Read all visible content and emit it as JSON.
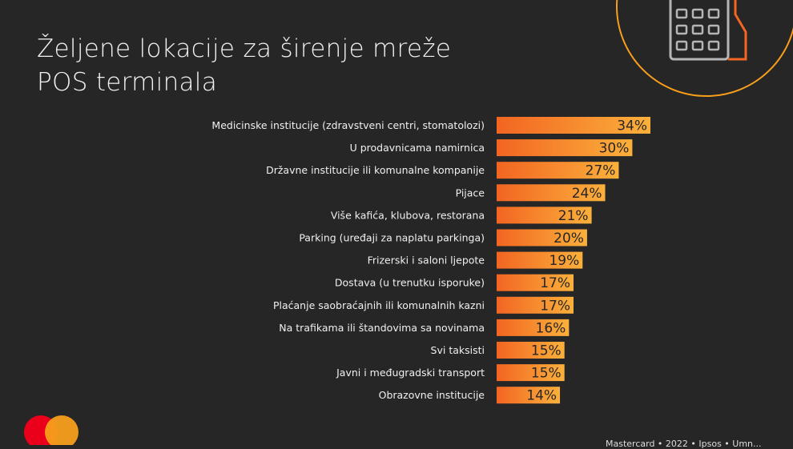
{
  "colors": {
    "background": "#262626",
    "bar_start": "#f26522",
    "bar_end": "#fbb03b",
    "accent_circle": "#f79e1b",
    "logo_red": "#eb001b",
    "logo_orange": "#f79e1b"
  },
  "icons": [
    "pos-terminal-icon",
    "brand-logo-icon"
  ],
  "footer": {
    "text": "Mastercard • 2022 • Ipsos • Umn..."
  },
  "chart_data": {
    "type": "bar",
    "orientation": "horizontal",
    "title": "Željene lokacije za širenje mreže POS terminala",
    "title_lines": [
      "Željene lokacije za širenje mreže",
      "POS terminala"
    ],
    "categories": [
      "Medicinske institucije (zdravstveni centri, stomatolozi)",
      "U prodavnicama namirnica",
      "Državne institucije ili komunalne kompanije",
      "Pijace",
      "Više kafića, klubova, restorana",
      "Parking (uređaji za naplatu parkinga)",
      "Frizerski i saloni ljepote",
      "Dostava (u trenutku isporuke)",
      "Plaćanje saobraćajnih ili komunalnih kazni",
      "Na  trafikama ili štandovima sa novinama",
      "Svi taksisti",
      "Javni i međugradski transport",
      "Obrazovne institucije"
    ],
    "values": [
      34,
      30,
      27,
      24,
      21,
      20,
      19,
      17,
      17,
      16,
      15,
      15,
      14
    ],
    "value_labels": [
      "34%",
      "30%",
      "27%",
      "24%",
      "21%",
      "20%",
      "19%",
      "17%",
      "17%",
      "16%",
      "15%",
      "15%",
      "14%"
    ],
    "unit": "%",
    "xlim": [
      0,
      34
    ],
    "grid": false,
    "legend": "none"
  }
}
